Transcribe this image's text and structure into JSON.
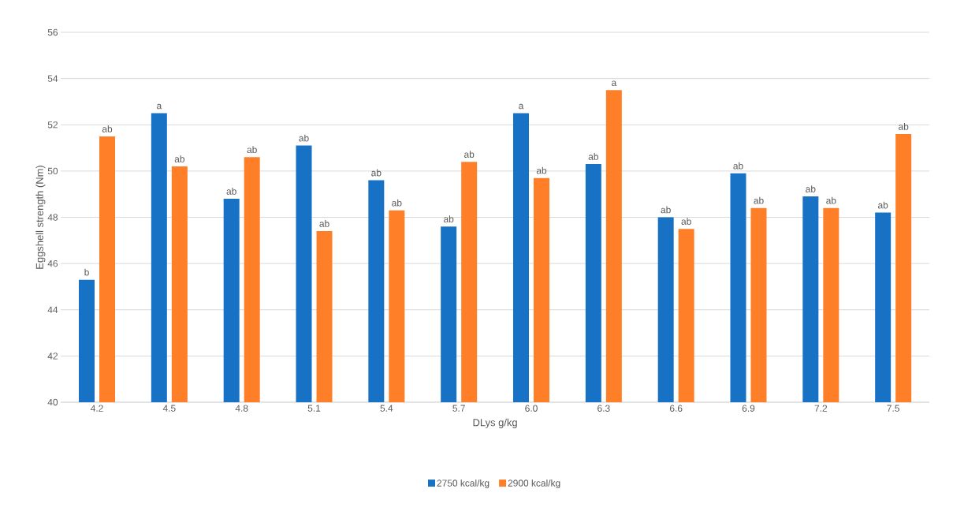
{
  "chart_data": {
    "type": "bar",
    "xlabel": "DLys g/kg",
    "ylabel": "Eggshell strength (Nm)",
    "categories": [
      "4.2",
      "4.5",
      "4.8",
      "5.1",
      "5.4",
      "5.7",
      "6.0",
      "6.3",
      "6.6",
      "6.9",
      "7.2",
      "7.5"
    ],
    "series": [
      {
        "name": "2750 kcal/kg",
        "color": "#1772c6",
        "values": [
          45.3,
          52.5,
          48.8,
          51.1,
          49.6,
          47.6,
          52.5,
          50.3,
          48.0,
          49.9,
          48.9,
          48.2
        ]
      },
      {
        "name": "2900 kcal/kg",
        "color": "#fe7f27",
        "values": [
          51.5,
          50.2,
          50.6,
          47.4,
          48.3,
          50.4,
          49.7,
          53.5,
          47.5,
          48.4,
          48.4,
          51.6
        ]
      }
    ],
    "ylim": [
      40,
      56
    ],
    "yticks": [
      40,
      42,
      44,
      46,
      48,
      50,
      52,
      54,
      56
    ],
    "grid": "y",
    "legend": "bottom",
    "annotations": [
      {
        "text": "b",
        "x": "4.2",
        "y": 45.3
      },
      {
        "text": "ab",
        "x": "4.2",
        "y": 51.5
      },
      {
        "text": "a",
        "x": "4.5",
        "y": 52.5
      },
      {
        "text": "ab",
        "x": "4.5",
        "y": 50.2
      },
      {
        "text": "ab",
        "x": "4.8",
        "y": 48.8
      },
      {
        "text": "ab",
        "x": "4.8",
        "y": 50.6
      },
      {
        "text": "ab",
        "x": "5.1",
        "y": 51.1
      },
      {
        "text": "ab",
        "x": "5.1",
        "y": 47.4
      },
      {
        "text": "ab",
        "x": "5.4",
        "y": 49.6
      },
      {
        "text": "ab",
        "x": "5.4",
        "y": 48.3
      },
      {
        "text": "ab",
        "x": "5.7",
        "y": 47.6
      },
      {
        "text": "ab",
        "x": "5.7",
        "y": 50.4
      },
      {
        "text": "a",
        "x": "6.0",
        "y": 52.5
      },
      {
        "text": "ab",
        "x": "6.0",
        "y": 49.7
      },
      {
        "text": "ab",
        "x": "6.3",
        "y": 50.3
      },
      {
        "text": "a",
        "x": "6.3",
        "y": 53.5
      },
      {
        "text": "ab",
        "x": "6.6",
        "y": 48.0
      },
      {
        "text": "ab",
        "x": "6.6",
        "y": 47.5
      },
      {
        "text": "ab",
        "x": "6.9",
        "y": 49.9
      },
      {
        "text": "ab",
        "x": "6.9",
        "y": 48.4
      },
      {
        "text": "ab",
        "x": "7.2",
        "y": 48.9
      },
      {
        "text": "ab",
        "x": "7.2",
        "y": 48.4
      },
      {
        "text": "ab",
        "x": "7.5",
        "y": 48.2
      },
      {
        "text": "ab",
        "x": "7.5",
        "y": 51.6
      }
    ]
  }
}
